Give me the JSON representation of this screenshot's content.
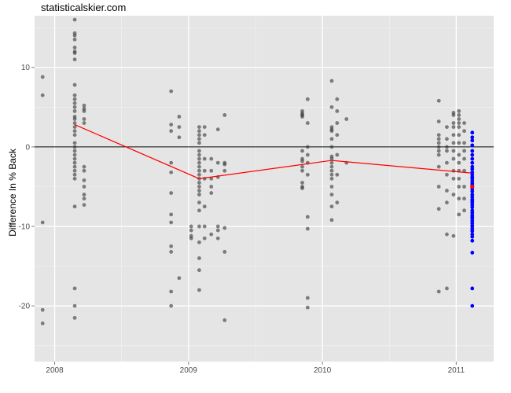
{
  "watermark": "statisticalskier.com",
  "colors": {
    "panel": "#e5e5e5",
    "grid_major": "#ffffff",
    "grid_minor": "#f2f2f2",
    "points": "#333333",
    "highlight_points": "#0000ff",
    "trend_line": "#ff0000",
    "zero_line": "#000000"
  },
  "chart_data": {
    "type": "scatter",
    "title": "",
    "xlabel": "",
    "ylabel": "Difference In % Back",
    "xlim": [
      2007.85,
      2011.28
    ],
    "ylim": [
      -27.0,
      16.5
    ],
    "x_ticks": [
      2008,
      2009,
      2010,
      2011
    ],
    "x_tick_labels": [
      "2008",
      "2009",
      "2010",
      "2011"
    ],
    "y_ticks": [
      -20,
      -10,
      0,
      10
    ],
    "y_tick_labels": [
      "-20",
      "-10",
      "0",
      "10"
    ],
    "grid": true,
    "reference_line_y": 0,
    "series": [
      {
        "kind": "points",
        "x": [
          2007.91,
          2007.91,
          2007.91,
          2007.91,
          2007.91,
          2008.15,
          2008.15,
          2008.15,
          2008.15,
          2008.15,
          2008.15,
          2008.15,
          2008.15,
          2008.15,
          2008.15,
          2008.15,
          2008.15,
          2008.15,
          2008.15,
          2008.15,
          2008.15,
          2008.15,
          2008.15,
          2008.15,
          2008.15,
          2008.15,
          2008.15,
          2008.15,
          2008.15,
          2008.15,
          2008.15,
          2008.15,
          2008.15,
          2008.15,
          2008.15,
          2008.15,
          2008.15,
          2008.15,
          2008.15,
          2008.22,
          2008.22,
          2008.22,
          2008.22,
          2008.22,
          2008.22,
          2008.22,
          2008.22,
          2008.22,
          2008.22,
          2008.22,
          2008.22,
          2008.87,
          2008.87,
          2008.87,
          2008.87,
          2008.87,
          2008.87,
          2008.87,
          2008.87,
          2008.87,
          2008.87,
          2008.87,
          2008.87,
          2008.93,
          2008.93,
          2008.93,
          2008.93,
          2009.02,
          2009.02,
          2009.02,
          2009.02,
          2009.08,
          2009.08,
          2009.08,
          2009.08,
          2009.08,
          2009.08,
          2009.08,
          2009.08,
          2009.08,
          2009.08,
          2009.08,
          2009.08,
          2009.08,
          2009.08,
          2009.08,
          2009.08,
          2009.08,
          2009.08,
          2009.08,
          2009.08,
          2009.08,
          2009.08,
          2009.08,
          2009.08,
          2009.12,
          2009.12,
          2009.12,
          2009.12,
          2009.12,
          2009.12,
          2009.12,
          2009.12,
          2009.17,
          2009.17,
          2009.17,
          2009.17,
          2009.17,
          2009.17,
          2009.22,
          2009.22,
          2009.22,
          2009.22,
          2009.22,
          2009.22,
          2009.27,
          2009.27,
          2009.27,
          2009.27,
          2009.27,
          2009.27,
          2009.27,
          2009.85,
          2009.85,
          2009.85,
          2009.85,
          2009.85,
          2009.85,
          2009.85,
          2009.85,
          2009.85,
          2009.85,
          2009.85,
          2009.85,
          2009.89,
          2009.89,
          2009.89,
          2009.89,
          2009.89,
          2009.89,
          2009.89,
          2009.89,
          2009.89,
          2009.89,
          2010.07,
          2010.07,
          2010.07,
          2010.07,
          2010.07,
          2010.07,
          2010.07,
          2010.07,
          2010.07,
          2010.07,
          2010.07,
          2010.07,
          2010.07,
          2010.07,
          2010.07,
          2010.07,
          2010.07,
          2010.07,
          2010.11,
          2010.11,
          2010.11,
          2010.11,
          2010.11,
          2010.11,
          2010.11,
          2010.18,
          2010.18,
          2010.87,
          2010.87,
          2010.87,
          2010.87,
          2010.87,
          2010.87,
          2010.87,
          2010.87,
          2010.87,
          2010.87,
          2010.87,
          2010.87,
          2010.93,
          2010.93,
          2010.93,
          2010.93,
          2010.93,
          2010.93,
          2010.93,
          2010.93,
          2010.93,
          2010.93,
          2010.98,
          2010.98,
          2010.98,
          2010.98,
          2010.98,
          2010.98,
          2010.98,
          2010.98,
          2010.98,
          2010.98,
          2010.98,
          2010.98,
          2011.02,
          2011.02,
          2011.02,
          2011.02,
          2011.02,
          2011.02,
          2011.02,
          2011.02,
          2011.02,
          2011.02,
          2011.02,
          2011.02,
          2011.02,
          2011.02,
          2011.06,
          2011.06,
          2011.06,
          2011.06,
          2011.06,
          2011.06,
          2011.06,
          2011.06,
          2011.06
        ],
        "y": [
          8.8,
          6.5,
          -9.5,
          -20.5,
          -22.2,
          16.0,
          14.3,
          14.0,
          13.5,
          12.5,
          12.0,
          11.8,
          11.0,
          7.8,
          6.5,
          5.5,
          5.0,
          4.5,
          3.8,
          3.5,
          3.0,
          2.0,
          1.5,
          0.5,
          0.0,
          -0.5,
          -1.0,
          -1.5,
          -2.0,
          -2.5,
          -3.0,
          -3.5,
          -4.0,
          -7.5,
          -17.8,
          -20.0,
          -21.5,
          2.5,
          6.0,
          5.2,
          4.8,
          4.5,
          3.5,
          3.0,
          -2.5,
          -3.0,
          -4.2,
          -5.0,
          -6.0,
          -6.5,
          -7.3,
          7.0,
          2.8,
          2.0,
          -2.0,
          -3.2,
          -5.8,
          -8.5,
          -9.5,
          -12.5,
          -13.2,
          -18.2,
          -20.0,
          3.8,
          2.5,
          1.2,
          -16.5,
          -10.0,
          -11.5,
          -11.2,
          -10.5,
          2.5,
          2.0,
          1.5,
          1.0,
          0.5,
          -0.5,
          -1.0,
          -1.5,
          -2.0,
          -2.5,
          -3.0,
          -3.5,
          -4.0,
          -4.5,
          -5.0,
          -5.5,
          -6.0,
          -7.0,
          -8.0,
          -10.0,
          -12.0,
          -14.0,
          -15.5,
          -18.0,
          2.5,
          1.5,
          -1.5,
          -3.0,
          -4.0,
          -7.5,
          -10.0,
          -11.5,
          -1.5,
          -3.0,
          -4.0,
          -5.0,
          -5.8,
          -11.0,
          2.2,
          -2.0,
          -3.8,
          -10.0,
          -10.5,
          -11.5,
          4.0,
          -2.0,
          -2.2,
          -3.0,
          -10.2,
          -13.2,
          -21.8,
          4.5,
          4.2,
          4.0,
          3.8,
          -0.5,
          -1.5,
          -1.8,
          -2.5,
          -3.0,
          -4.5,
          -5.0,
          -5.2,
          6.0,
          3.0,
          0.0,
          -1.0,
          -2.0,
          -3.5,
          -8.8,
          -10.3,
          -19.0,
          -20.2,
          8.3,
          5.0,
          2.5,
          2.2,
          2.0,
          1.0,
          0.0,
          -1.2,
          -1.5,
          -2.0,
          -2.5,
          -3.0,
          -3.5,
          -4.0,
          -5.0,
          -6.0,
          -7.5,
          -9.2,
          6.0,
          4.5,
          3.0,
          1.5,
          -1.0,
          -3.5,
          -7.0,
          3.5,
          -2.0,
          5.8,
          3.2,
          1.5,
          1.0,
          0.5,
          0.0,
          -0.5,
          -1.0,
          -2.5,
          -5.0,
          -7.8,
          -18.2,
          2.5,
          1.0,
          0.0,
          -0.5,
          -2.0,
          -3.5,
          -5.5,
          -7.0,
          -11.0,
          -17.8,
          4.3,
          4.0,
          3.0,
          2.5,
          1.5,
          0.5,
          -0.5,
          -1.5,
          -3.0,
          -4.0,
          -6.0,
          -11.2,
          4.5,
          4.0,
          3.5,
          3.0,
          2.5,
          1.5,
          0.5,
          -1.0,
          -2.0,
          -3.0,
          -4.0,
          -5.0,
          -6.5,
          -8.5,
          3.0,
          2.0,
          0.5,
          -0.5,
          -1.5,
          -3.0,
          -5.0,
          -6.5,
          -8.0
        ]
      },
      {
        "kind": "highlight_points",
        "x": [
          2011.12,
          2011.12,
          2011.12,
          2011.12,
          2011.12,
          2011.12,
          2011.12,
          2011.12,
          2011.12,
          2011.12,
          2011.12,
          2011.12,
          2011.12,
          2011.12,
          2011.12,
          2011.12,
          2011.12,
          2011.12,
          2011.12,
          2011.12,
          2011.12,
          2011.12,
          2011.12,
          2011.12,
          2011.12,
          2011.12,
          2011.12,
          2011.12,
          2011.12,
          2011.12,
          2011.12,
          2011.12,
          2011.12,
          2011.12,
          2011.12,
          2011.12,
          2011.12,
          2011.12,
          2011.12,
          2011.12,
          2011.12,
          2011.12,
          2011.12,
          2011.12
        ],
        "y": [
          1.8,
          1.2,
          0.8,
          0.2,
          -0.5,
          -1.0,
          -1.5,
          -2.0,
          -2.8,
          -3.2,
          -3.5,
          -3.8,
          -4.0,
          -4.3,
          -4.6,
          -5.0,
          -5.3,
          -5.6,
          -6.0,
          -6.3,
          -6.6,
          -7.0,
          -7.3,
          -7.6,
          -8.0,
          -8.3,
          -8.6,
          -9.0,
          -9.3,
          -9.6,
          -10.0,
          -10.3,
          -10.6,
          -11.0,
          -11.3,
          -11.8,
          -13.3,
          -17.8,
          -20.0,
          -2.5,
          -4.8,
          -6.8,
          -8.8,
          -9.9
        ]
      },
      {
        "kind": "line",
        "x": [
          2008.15,
          2009.08,
          2010.07,
          2011.12
        ],
        "y": [
          2.8,
          -4.0,
          -1.7,
          -3.3
        ]
      },
      {
        "kind": "marker",
        "x": [
          2011.12
        ],
        "y": [
          -5.0
        ]
      }
    ]
  }
}
